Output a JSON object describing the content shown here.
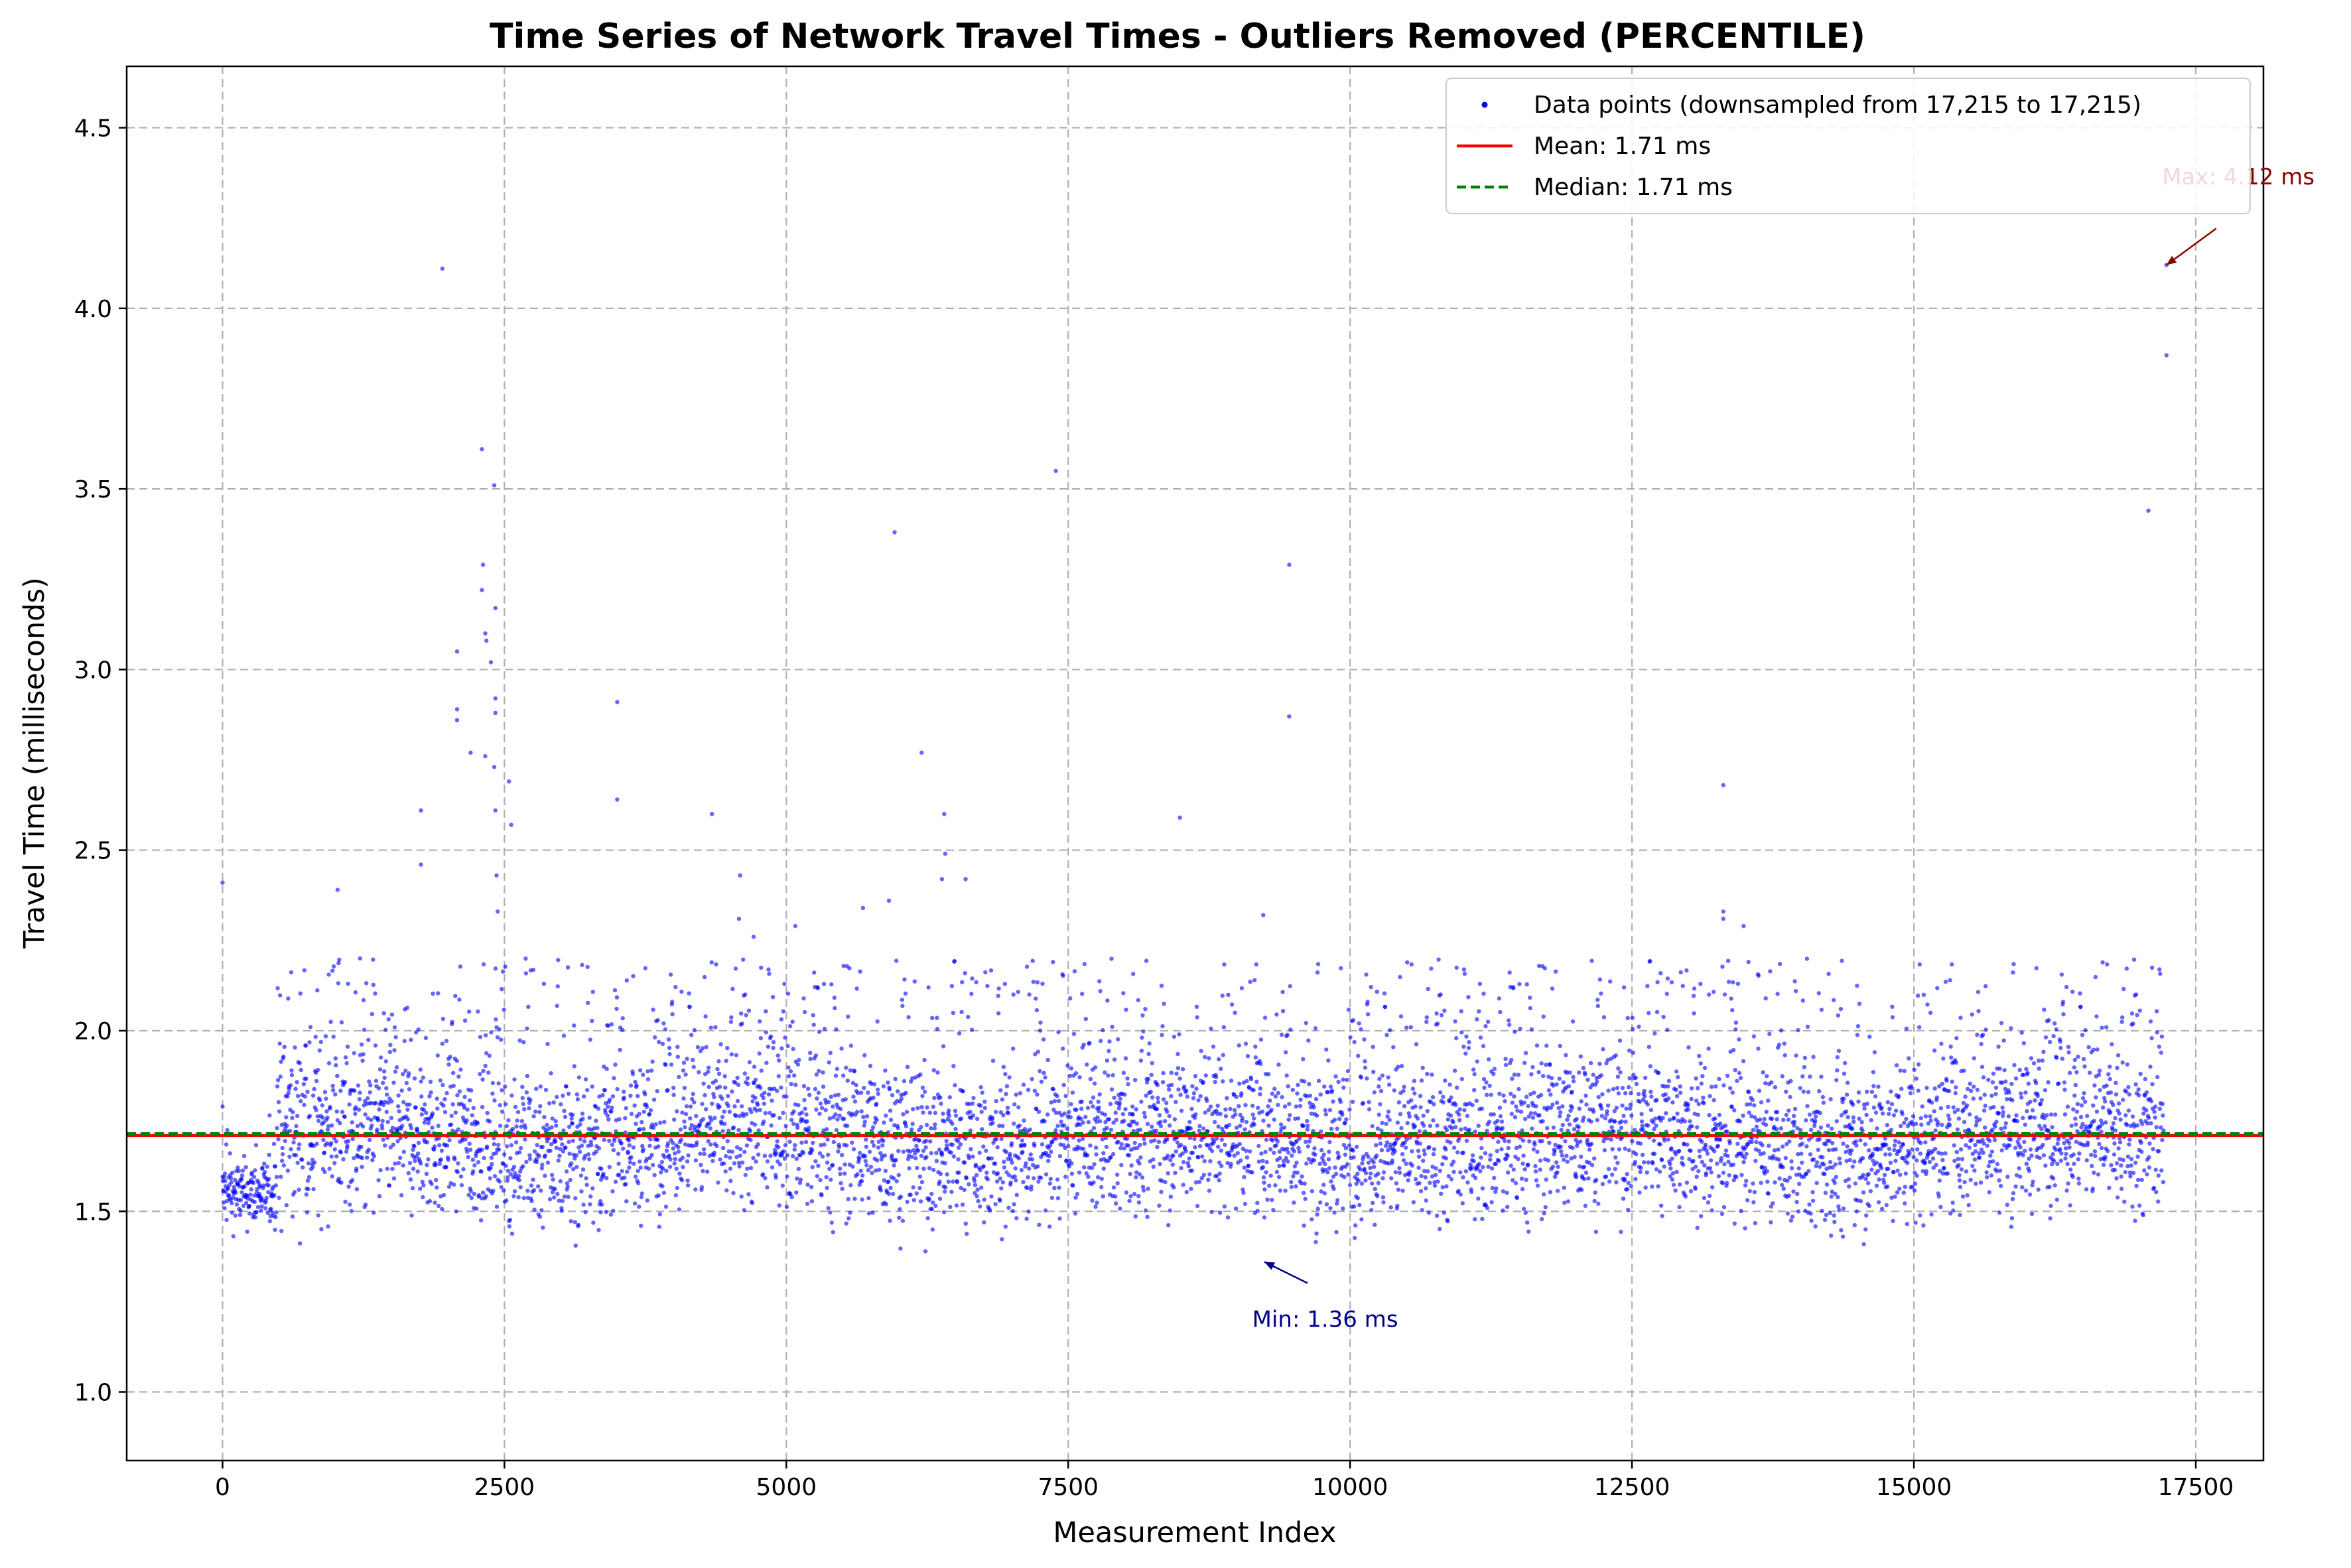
{
  "chart_data": {
    "type": "scatter",
    "title": "Time Series of Network Travel Times - Outliers Removed (PERCENTILE)",
    "xlabel": "Measurement Index",
    "ylabel": "Travel Time (milliseconds)",
    "xlim": [
      -850,
      18100
    ],
    "ylim": [
      0.81,
      4.67
    ],
    "xticks": [
      0,
      2500,
      5000,
      7500,
      10000,
      12500,
      15000,
      17500
    ],
    "xtick_labels": [
      "0",
      "2500",
      "5000",
      "7500",
      "10000",
      "12500",
      "15000",
      "17500"
    ],
    "yticks": [
      1.0,
      1.5,
      2.0,
      2.5,
      3.0,
      3.5,
      4.0,
      4.5
    ],
    "ytick_labels": [
      "1.0",
      "1.5",
      "2.0",
      "2.5",
      "3.0",
      "3.5",
      "4.0",
      "4.5"
    ],
    "grid": true,
    "legend_position": "top-right",
    "colors": {
      "points": "#0000ff",
      "mean": "#ff0000",
      "median": "#008000",
      "max_annotation": "#8b0000",
      "min_annotation": "#00008b"
    },
    "n_points": 17215,
    "series": [
      {
        "name": "Data points (downsampled from 17,215 to 17,215)",
        "kind": "scatter",
        "color": "#0000ff",
        "description_bands": [
          {
            "x_range": [
              0,
              480
            ],
            "y_range": [
              1.44,
              1.66
            ],
            "note": "dense"
          },
          {
            "x_range": [
              480,
              17230
            ],
            "y_range": [
              1.4,
              1.95
            ],
            "note": "dense"
          }
        ]
      },
      {
        "name": "Mean: 1.71 ms",
        "kind": "hline",
        "y": 1.71,
        "color": "#ff0000",
        "style": "solid"
      },
      {
        "name": "Median: 1.71 ms",
        "kind": "hline",
        "y": 1.715,
        "color": "#008000",
        "style": "dashed"
      }
    ],
    "outliers": [
      [
        0,
        2.41
      ],
      [
        0,
        1.79
      ],
      [
        1020,
        2.39
      ],
      [
        1220,
        2.2
      ],
      [
        1760,
        2.61
      ],
      [
        1760,
        2.46
      ],
      [
        1950,
        4.11
      ],
      [
        2080,
        3.05
      ],
      [
        2080,
        2.89
      ],
      [
        2080,
        2.86
      ],
      [
        2200,
        2.77
      ],
      [
        2300,
        3.61
      ],
      [
        2310,
        3.29
      ],
      [
        2300,
        3.22
      ],
      [
        2330,
        3.1
      ],
      [
        2340,
        3.08
      ],
      [
        2380,
        3.02
      ],
      [
        2410,
        3.51
      ],
      [
        2420,
        3.17
      ],
      [
        2420,
        2.92
      ],
      [
        2420,
        2.88
      ],
      [
        2410,
        2.73
      ],
      [
        2330,
        2.76
      ],
      [
        2420,
        2.61
      ],
      [
        2430,
        2.43
      ],
      [
        2440,
        2.33
      ],
      [
        2540,
        2.69
      ],
      [
        2560,
        2.57
      ],
      [
        3500,
        2.91
      ],
      [
        3500,
        2.64
      ],
      [
        4340,
        2.6
      ],
      [
        4590,
        2.43
      ],
      [
        4580,
        2.31
      ],
      [
        4710,
        2.26
      ],
      [
        5080,
        2.29
      ],
      [
        5680,
        2.34
      ],
      [
        5910,
        2.36
      ],
      [
        5960,
        3.38
      ],
      [
        6200,
        2.77
      ],
      [
        6400,
        2.6
      ],
      [
        6380,
        2.42
      ],
      [
        6410,
        2.49
      ],
      [
        6590,
        2.42
      ],
      [
        7390,
        3.55
      ],
      [
        8490,
        2.59
      ],
      [
        9230,
        2.32
      ],
      [
        9460,
        3.29
      ],
      [
        9460,
        2.87
      ],
      [
        13310,
        2.68
      ],
      [
        13310,
        2.33
      ],
      [
        13310,
        2.31
      ],
      [
        13490,
        2.29
      ],
      [
        17080,
        3.44
      ],
      [
        17240,
        4.12
      ],
      [
        17240,
        3.87
      ]
    ],
    "annotations": [
      {
        "text": "Max: 4.12 ms",
        "x": 17240,
        "y": 4.12,
        "text_x": 17260,
        "text_y": 4.27,
        "color": "#8b0000"
      },
      {
        "text": "Min: 1.36 ms",
        "x": 9240,
        "y": 1.36,
        "text_x": 9220,
        "text_y": 1.22,
        "color": "#00008b"
      }
    ]
  }
}
